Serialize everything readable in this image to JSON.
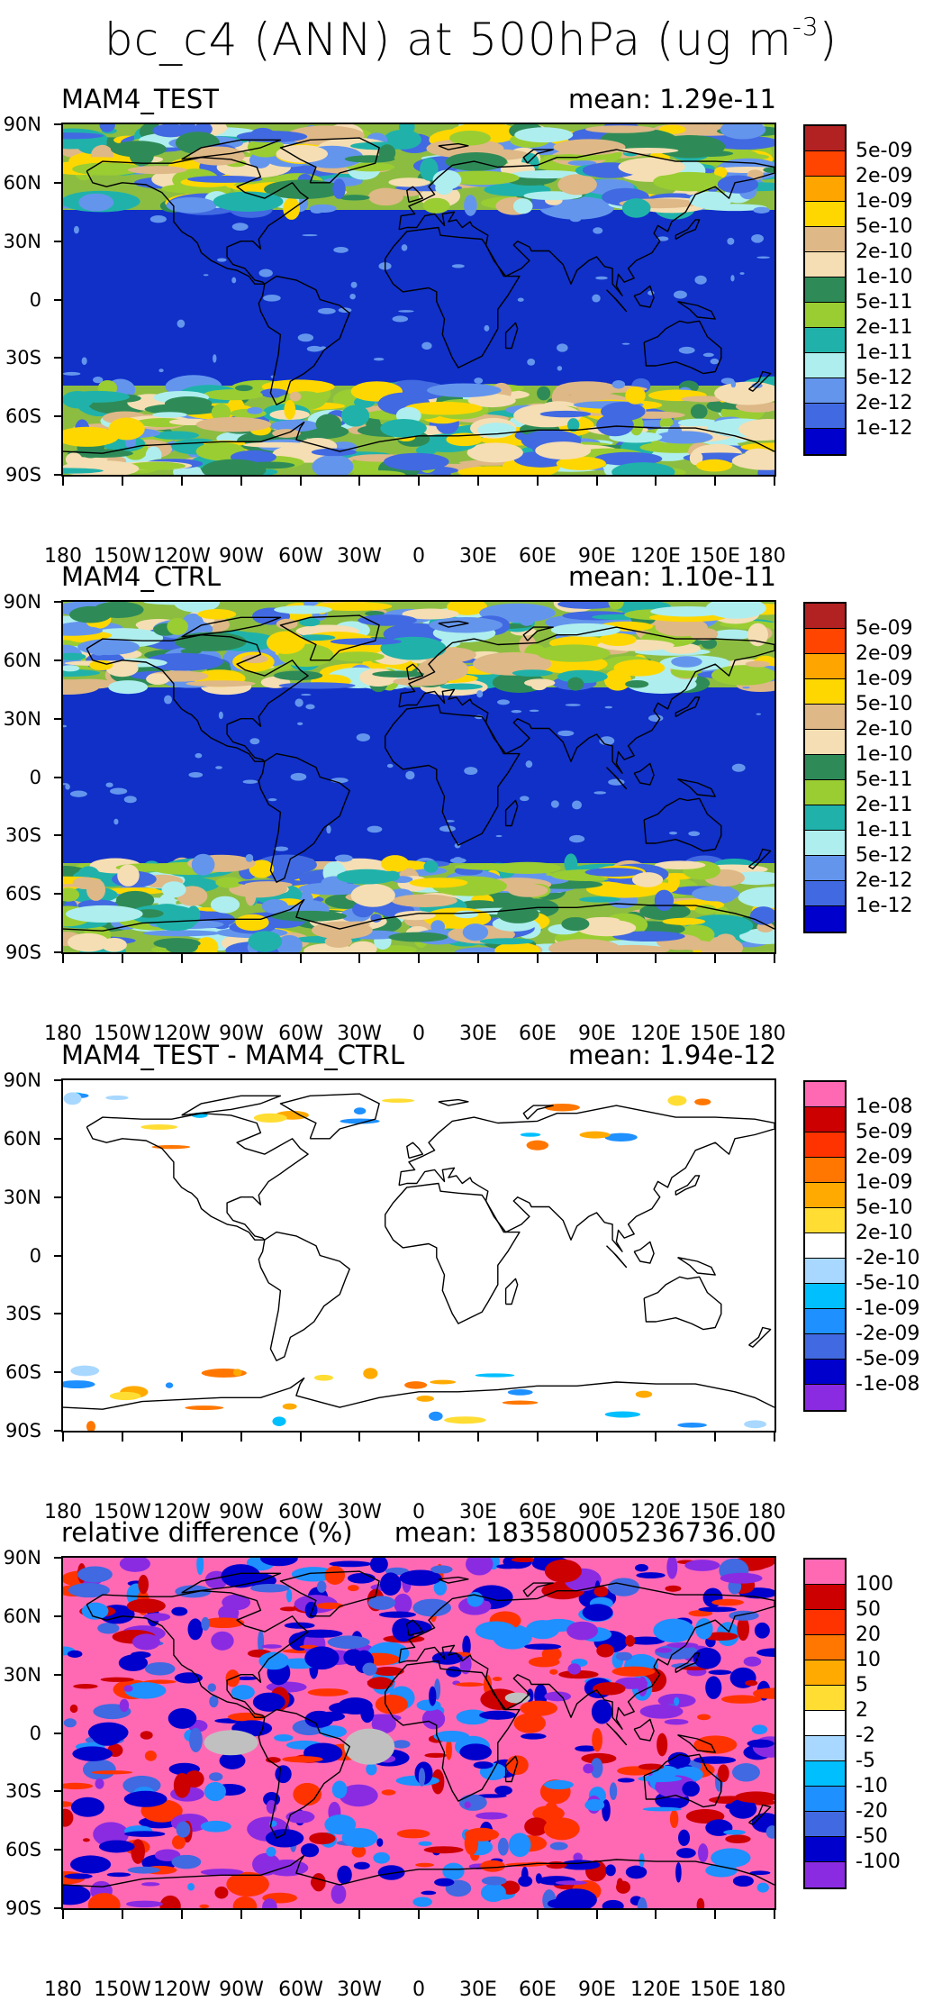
{
  "title": {
    "main": "bc_c4 (ANN) at 500hPa (ug m",
    "exponent": "-3",
    "close": ")"
  },
  "axes": {
    "lat_labels": [
      "90N",
      "60N",
      "30N",
      "0",
      "30S",
      "60S",
      "90S"
    ],
    "lon_labels": [
      "180",
      "150W",
      "120W",
      "90W",
      "60W",
      "30W",
      "0",
      "30E",
      "60E",
      "90E",
      "120E",
      "150E",
      "180"
    ]
  },
  "panels": [
    {
      "label": "MAM4_TEST",
      "mean": "mean: 1.29e-11",
      "colorbar_labels": [
        "5e-09",
        "2e-09",
        "1e-09",
        "5e-10",
        "2e-10",
        "1e-10",
        "5e-11",
        "2e-11",
        "1e-11",
        "5e-12",
        "2e-12",
        "1e-12"
      ],
      "colorbar_colors": [
        "#b22222",
        "#ff4500",
        "#ffa500",
        "#ffd700",
        "#deb887",
        "#f5deb3",
        "#2e8b57",
        "#9acd32",
        "#20b2aa",
        "#afeeee",
        "#6495ed",
        "#4169e1",
        "#0000cd"
      ],
      "background": "#1030c8"
    },
    {
      "label": "MAM4_CTRL",
      "mean": "mean: 1.10e-11",
      "colorbar_labels": [
        "5e-09",
        "2e-09",
        "1e-09",
        "5e-10",
        "2e-10",
        "1e-10",
        "5e-11",
        "2e-11",
        "1e-11",
        "5e-12",
        "2e-12",
        "1e-12"
      ],
      "colorbar_colors": [
        "#b22222",
        "#ff4500",
        "#ffa500",
        "#ffd700",
        "#deb887",
        "#f5deb3",
        "#2e8b57",
        "#9acd32",
        "#20b2aa",
        "#afeeee",
        "#6495ed",
        "#4169e1",
        "#0000cd"
      ],
      "background": "#1030c8"
    },
    {
      "label": "MAM4_TEST - MAM4_CTRL",
      "mean": "mean: 1.94e-12",
      "colorbar_labels": [
        "1e-08",
        "5e-09",
        "2e-09",
        "1e-09",
        "5e-10",
        "2e-10",
        "-2e-10",
        "-5e-10",
        "-1e-09",
        "-2e-09",
        "-5e-09",
        "-1e-08"
      ],
      "colorbar_colors": [
        "#ff69b4",
        "#cc0000",
        "#ff3300",
        "#ff7700",
        "#ffaa00",
        "#ffdd33",
        "#ffffff",
        "#a8d8ff",
        "#00bfff",
        "#1e90ff",
        "#4169e1",
        "#0000cd",
        "#8a2be2"
      ],
      "background": "#ffffff"
    },
    {
      "label": "relative difference (%)",
      "mean": "mean: 183580005236736.00",
      "colorbar_labels": [
        "100",
        "50",
        "20",
        "10",
        "5",
        "2",
        "-2",
        "-5",
        "-10",
        "-20",
        "-50",
        "-100"
      ],
      "colorbar_colors": [
        "#ff69b4",
        "#cc0000",
        "#ff3300",
        "#ff7700",
        "#ffaa00",
        "#ffdd33",
        "#ffffff",
        "#a8d8ff",
        "#00bfff",
        "#1e90ff",
        "#4169e1",
        "#0000cd",
        "#8a2be2"
      ],
      "background": "#ff69b4"
    }
  ]
}
